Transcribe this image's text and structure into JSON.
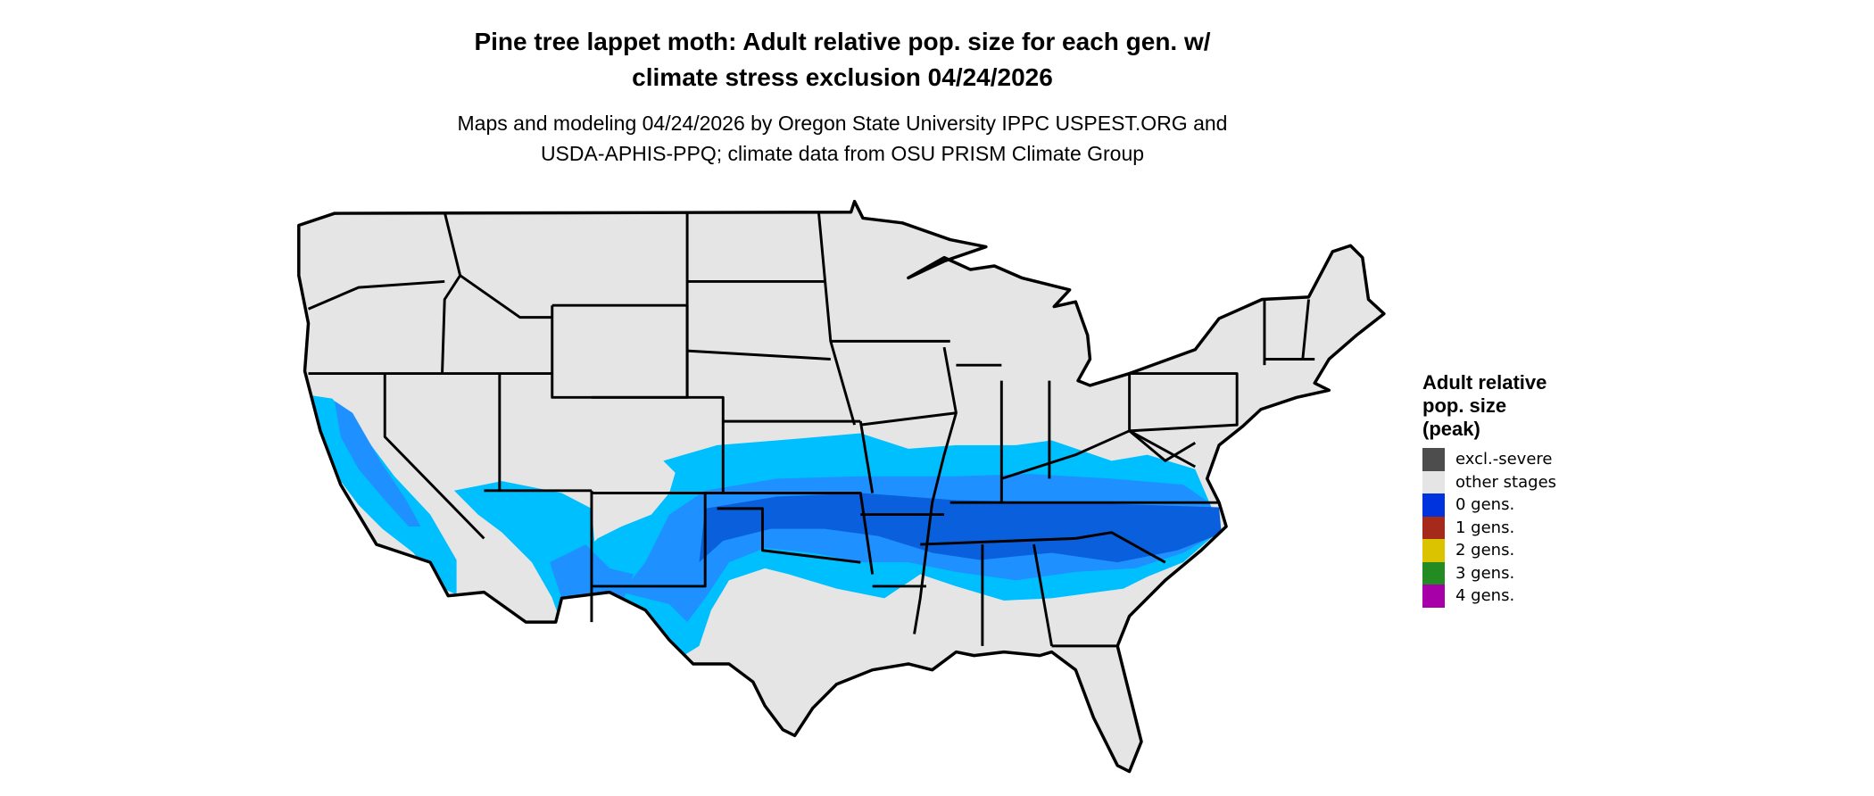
{
  "title": {
    "line1": "Pine tree lappet moth: Adult relative pop. size for each gen. w/",
    "line2": "climate stress exclusion 04/24/2026"
  },
  "subtitle": {
    "line1": "Maps and modeling 04/24/2026 by Oregon State University IPPC USPEST.ORG and",
    "line2": "USDA-APHIS-PPQ; climate data from OSU PRISM Climate Group"
  },
  "map": {
    "region": "Contiguous United States",
    "colors": {
      "background_land": "#e5e5e5",
      "border": "#000000",
      "light_blue": "#00bfff",
      "mid_blue": "#1e90ff",
      "dark_blue": "#0a5fdc"
    }
  },
  "legend": {
    "title_lines": [
      "Adult relative",
      "pop. size",
      "(peak)"
    ],
    "items": [
      {
        "label": "excl.-severe",
        "color": "#4d4d4d"
      },
      {
        "label": "other stages",
        "color": "#e5e5e5"
      },
      {
        "label": "0 gens.",
        "color": "#0033dd"
      },
      {
        "label": "1 gens.",
        "color": "#a52a1a"
      },
      {
        "label": "2 gens.",
        "color": "#dcc300"
      },
      {
        "label": "3 gens.",
        "color": "#228b22"
      },
      {
        "label": "4 gens.",
        "color": "#a800a8"
      }
    ]
  }
}
